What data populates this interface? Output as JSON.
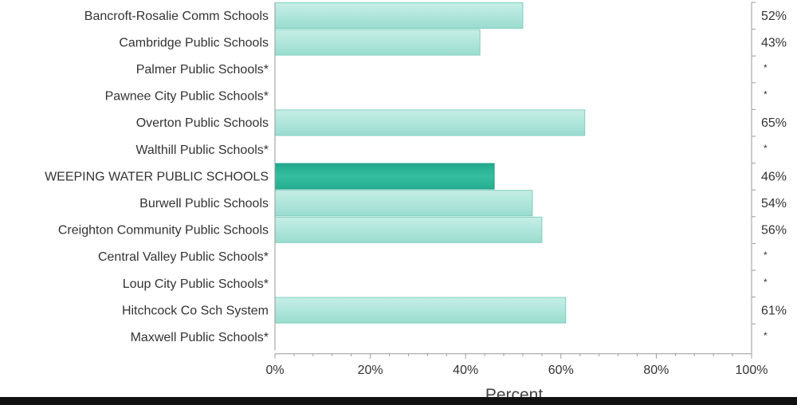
{
  "chart_data": {
    "type": "bar",
    "orientation": "horizontal",
    "categories": [
      "Bancroft-Rosalie Comm Schools",
      "Cambridge Public Schools",
      "Palmer Public Schools*",
      "Pawnee City Public Schools*",
      "Overton Public Schools",
      "Walthill Public Schools*",
      "WEEPING WATER PUBLIC SCHOOLS",
      "Burwell Public Schools",
      "Creighton Community Public Schools",
      "Central Valley Public Schools*",
      "Loup City Public Schools*",
      "Hitchcock Co Sch System",
      "Maxwell Public Schools*"
    ],
    "values": [
      52,
      43,
      null,
      null,
      65,
      null,
      46,
      54,
      56,
      null,
      null,
      61,
      null
    ],
    "value_labels": [
      "52%",
      "43%",
      "*",
      "*",
      "65%",
      "*",
      "46%",
      "54%",
      "56%",
      "*",
      "*",
      "61%",
      "*"
    ],
    "highlighted_category": "WEEPING WATER PUBLIC SCHOOLS",
    "xlim": [
      0,
      100
    ],
    "xticks": [
      "0%",
      "20%",
      "40%",
      "60%",
      "80%",
      "100%"
    ],
    "xlabel": "Percent",
    "ylabel": "",
    "title": "",
    "grid": false,
    "colors": {
      "bar": "#aee5da",
      "bar_border": "#7fcfbf",
      "highlight": "#2db69a",
      "highlight_border": "#1f9e84",
      "axis": "#999999",
      "text": "#333333"
    }
  }
}
